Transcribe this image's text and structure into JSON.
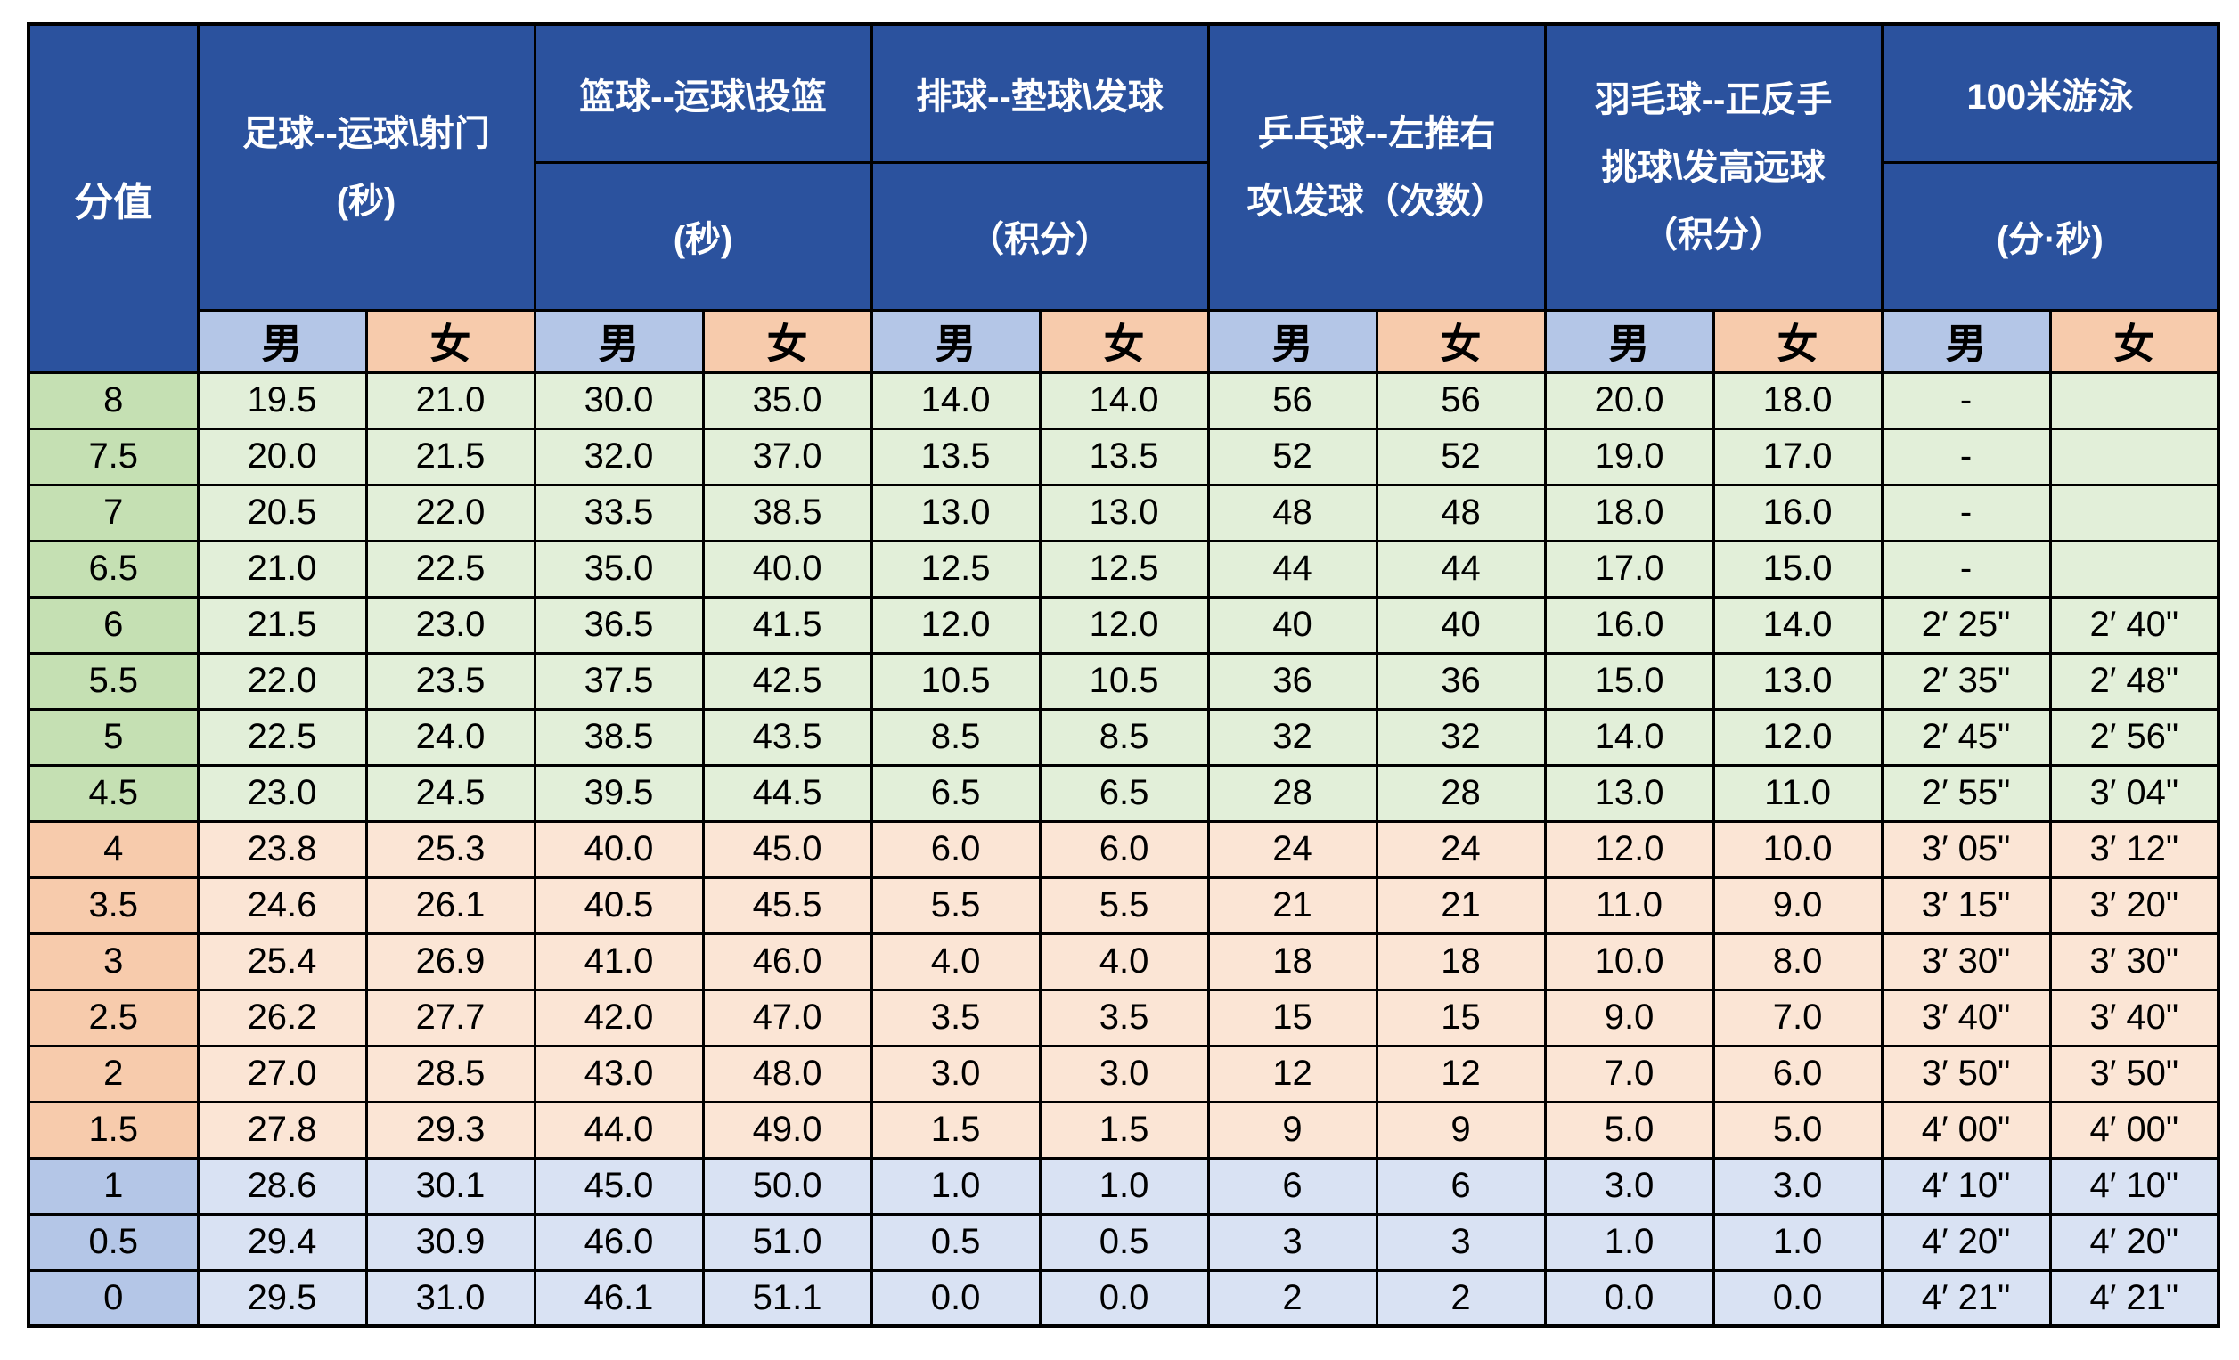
{
  "colors": {
    "header_blue": "#2B529E",
    "header_text": "#FFFFFF",
    "male_header": "#B4C6E7",
    "female_header": "#F7CBAC",
    "green_score": "#C5E0B3",
    "green_data": "#E2EFD9",
    "orange_score": "#F7CBAC",
    "orange_data": "#FBE5D5",
    "blue_score": "#B4C6E7",
    "blue_data": "#D9E2F3",
    "grid": "#000000"
  },
  "table": {
    "score_header": "分值",
    "gender_male": "男",
    "gender_female": "女",
    "groups": [
      {
        "id": "soccer",
        "merged": true,
        "lines": [
          "足球--运球\\射门",
          "(秒)"
        ]
      },
      {
        "id": "basketball",
        "merged": false,
        "title": "篮球--运球\\投篮",
        "unit": "(秒)"
      },
      {
        "id": "volleyball",
        "merged": false,
        "title": "排球--垫球\\发球",
        "unit": "（积分）"
      },
      {
        "id": "tabletennis",
        "merged": true,
        "lines": [
          "乒乓球--左推右",
          "攻\\发球（次数）"
        ]
      },
      {
        "id": "badminton",
        "merged": true,
        "lines": [
          "羽毛球--正反手",
          "挑球\\发高远球",
          "（积分）"
        ]
      },
      {
        "id": "swimming",
        "merged": false,
        "title": "100米游泳",
        "unit": "(分·秒)"
      }
    ],
    "rows": [
      {
        "score": "8",
        "group": "green",
        "values": [
          "19.5",
          "21.0",
          "30.0",
          "35.0",
          "14.0",
          "14.0",
          "56",
          "56",
          "20.0",
          "18.0",
          "-",
          ""
        ]
      },
      {
        "score": "7.5",
        "group": "green",
        "values": [
          "20.0",
          "21.5",
          "32.0",
          "37.0",
          "13.5",
          "13.5",
          "52",
          "52",
          "19.0",
          "17.0",
          "-",
          ""
        ]
      },
      {
        "score": "7",
        "group": "green",
        "values": [
          "20.5",
          "22.0",
          "33.5",
          "38.5",
          "13.0",
          "13.0",
          "48",
          "48",
          "18.0",
          "16.0",
          "-",
          ""
        ]
      },
      {
        "score": "6.5",
        "group": "green",
        "values": [
          "21.0",
          "22.5",
          "35.0",
          "40.0",
          "12.5",
          "12.5",
          "44",
          "44",
          "17.0",
          "15.0",
          "-",
          ""
        ]
      },
      {
        "score": "6",
        "group": "green",
        "values": [
          "21.5",
          "23.0",
          "36.5",
          "41.5",
          "12.0",
          "12.0",
          "40",
          "40",
          "16.0",
          "14.0",
          "2′ 25\"",
          "2′ 40\""
        ]
      },
      {
        "score": "5.5",
        "group": "green",
        "values": [
          "22.0",
          "23.5",
          "37.5",
          "42.5",
          "10.5",
          "10.5",
          "36",
          "36",
          "15.0",
          "13.0",
          "2′ 35\"",
          "2′ 48\""
        ]
      },
      {
        "score": "5",
        "group": "green",
        "values": [
          "22.5",
          "24.0",
          "38.5",
          "43.5",
          "8.5",
          "8.5",
          "32",
          "32",
          "14.0",
          "12.0",
          "2′ 45\"",
          "2′ 56\""
        ]
      },
      {
        "score": "4.5",
        "group": "green",
        "values": [
          "23.0",
          "24.5",
          "39.5",
          "44.5",
          "6.5",
          "6.5",
          "28",
          "28",
          "13.0",
          "11.0",
          "2′ 55\"",
          "3′ 04\""
        ]
      },
      {
        "score": "4",
        "group": "orange",
        "values": [
          "23.8",
          "25.3",
          "40.0",
          "45.0",
          "6.0",
          "6.0",
          "24",
          "24",
          "12.0",
          "10.0",
          "3′ 05\"",
          "3′ 12\""
        ]
      },
      {
        "score": "3.5",
        "group": "orange",
        "values": [
          "24.6",
          "26.1",
          "40.5",
          "45.5",
          "5.5",
          "5.5",
          "21",
          "21",
          "11.0",
          "9.0",
          "3′ 15\"",
          "3′ 20\""
        ]
      },
      {
        "score": "3",
        "group": "orange",
        "values": [
          "25.4",
          "26.9",
          "41.0",
          "46.0",
          "4.0",
          "4.0",
          "18",
          "18",
          "10.0",
          "8.0",
          "3′ 30\"",
          "3′ 30\""
        ]
      },
      {
        "score": "2.5",
        "group": "orange",
        "values": [
          "26.2",
          "27.7",
          "42.0",
          "47.0",
          "3.5",
          "3.5",
          "15",
          "15",
          "9.0",
          "7.0",
          "3′ 40\"",
          "3′ 40\""
        ]
      },
      {
        "score": "2",
        "group": "orange",
        "values": [
          "27.0",
          "28.5",
          "43.0",
          "48.0",
          "3.0",
          "3.0",
          "12",
          "12",
          "7.0",
          "6.0",
          "3′ 50\"",
          "3′ 50\""
        ]
      },
      {
        "score": "1.5",
        "group": "orange",
        "values": [
          "27.8",
          "29.3",
          "44.0",
          "49.0",
          "1.5",
          "1.5",
          "9",
          "9",
          "5.0",
          "5.0",
          "4′ 00\"",
          "4′ 00\""
        ]
      },
      {
        "score": "1",
        "group": "blue",
        "values": [
          "28.6",
          "30.1",
          "45.0",
          "50.0",
          "1.0",
          "1.0",
          "6",
          "6",
          "3.0",
          "3.0",
          "4′ 10\"",
          "4′ 10\""
        ]
      },
      {
        "score": "0.5",
        "group": "blue",
        "values": [
          "29.4",
          "30.9",
          "46.0",
          "51.0",
          "0.5",
          "0.5",
          "3",
          "3",
          "1.0",
          "1.0",
          "4′ 20\"",
          "4′ 20\""
        ]
      },
      {
        "score": "0",
        "group": "blue",
        "values": [
          "29.5",
          "31.0",
          "46.1",
          "51.1",
          "0.0",
          "0.0",
          "2",
          "2",
          "0.0",
          "0.0",
          "4′ 21\"",
          "4′ 21\""
        ]
      }
    ]
  }
}
